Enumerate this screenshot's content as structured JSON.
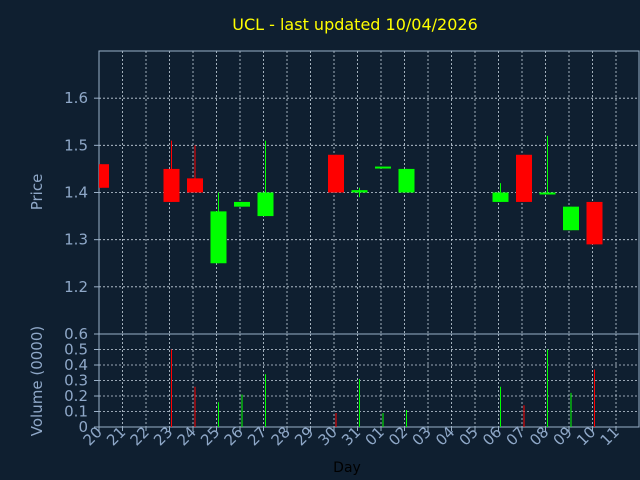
{
  "chart_data": {
    "type": "candlestick",
    "title": "UCL - last updated 10/04/2026",
    "xlabel": "Day",
    "price_panel": {
      "ylabel": "Price",
      "ylim": [
        1.1,
        1.7
      ],
      "yticks": [
        "1.2",
        "1.3",
        "1.4",
        "1.5",
        "1.6"
      ],
      "grid": true
    },
    "volume_panel": {
      "ylabel": "Volume (0000)",
      "ylim": [
        0,
        0.6
      ],
      "yticks": [
        "0",
        "0.1",
        "0.2",
        "0.3",
        "0.4",
        "0.5",
        "0.6"
      ],
      "grid": true
    },
    "categories": [
      "20",
      "21",
      "22",
      "23",
      "24",
      "25",
      "26",
      "27",
      "28",
      "29",
      "30",
      "31",
      "01",
      "02",
      "03",
      "04",
      "05",
      "06",
      "07",
      "08",
      "09",
      "10",
      "11"
    ],
    "candles": [
      {
        "day": "20",
        "open": 1.46,
        "close": 1.41,
        "high": 1.46,
        "low": 1.41
      },
      {
        "day": "23",
        "open": 1.45,
        "close": 1.38,
        "high": 1.51,
        "low": 1.38
      },
      {
        "day": "24",
        "open": 1.43,
        "close": 1.4,
        "high": 1.5,
        "low": 1.4
      },
      {
        "day": "25",
        "open": 1.25,
        "close": 1.36,
        "high": 1.4,
        "low": 1.25
      },
      {
        "day": "26",
        "open": 1.37,
        "close": 1.38,
        "high": 1.38,
        "low": 1.37
      },
      {
        "day": "27",
        "open": 1.35,
        "close": 1.4,
        "high": 1.51,
        "low": 1.35
      },
      {
        "day": "30",
        "open": 1.48,
        "close": 1.4,
        "high": 1.48,
        "low": 1.4
      },
      {
        "day": "31",
        "open": 1.4,
        "close": 1.405,
        "high": 1.41,
        "low": 1.39
      },
      {
        "day": "01",
        "open": 1.455,
        "close": 1.455,
        "high": 1.455,
        "low": 1.455
      },
      {
        "day": "02",
        "open": 1.4,
        "close": 1.45,
        "high": 1.45,
        "low": 1.4
      },
      {
        "day": "06",
        "open": 1.38,
        "close": 1.4,
        "high": 1.42,
        "low": 1.38
      },
      {
        "day": "07",
        "open": 1.48,
        "close": 1.38,
        "high": 1.48,
        "low": 1.38
      },
      {
        "day": "08",
        "open": 1.4,
        "close": 1.4,
        "high": 1.52,
        "low": 1.4
      },
      {
        "day": "09",
        "open": 1.32,
        "close": 1.37,
        "high": 1.37,
        "low": 1.32
      },
      {
        "day": "10",
        "open": 1.38,
        "close": 1.29,
        "high": 1.38,
        "low": 1.29
      }
    ],
    "volume": [
      {
        "day": "23",
        "value": 0.5,
        "direction": "down"
      },
      {
        "day": "24",
        "value": 0.26,
        "direction": "down"
      },
      {
        "day": "25",
        "value": 0.16,
        "direction": "up"
      },
      {
        "day": "26",
        "value": 0.21,
        "direction": "up"
      },
      {
        "day": "27",
        "value": 0.34,
        "direction": "up"
      },
      {
        "day": "30",
        "value": 0.09,
        "direction": "down"
      },
      {
        "day": "31",
        "value": 0.31,
        "direction": "up"
      },
      {
        "day": "01",
        "value": 0.09,
        "direction": "up"
      },
      {
        "day": "02",
        "value": 0.11,
        "direction": "up"
      },
      {
        "day": "06",
        "value": 0.26,
        "direction": "up"
      },
      {
        "day": "07",
        "value": 0.14,
        "direction": "down"
      },
      {
        "day": "08",
        "value": 0.5,
        "direction": "up"
      },
      {
        "day": "09",
        "value": 0.22,
        "direction": "up"
      },
      {
        "day": "10",
        "value": 0.37,
        "direction": "down"
      }
    ],
    "colors": {
      "background": "#0f1f30",
      "axis": "#9ab0c8",
      "grid": "#c8d4e0",
      "title": "#ffff00",
      "label": "#8fa8c8",
      "up": "#00ff00",
      "down": "#ff0000"
    }
  }
}
